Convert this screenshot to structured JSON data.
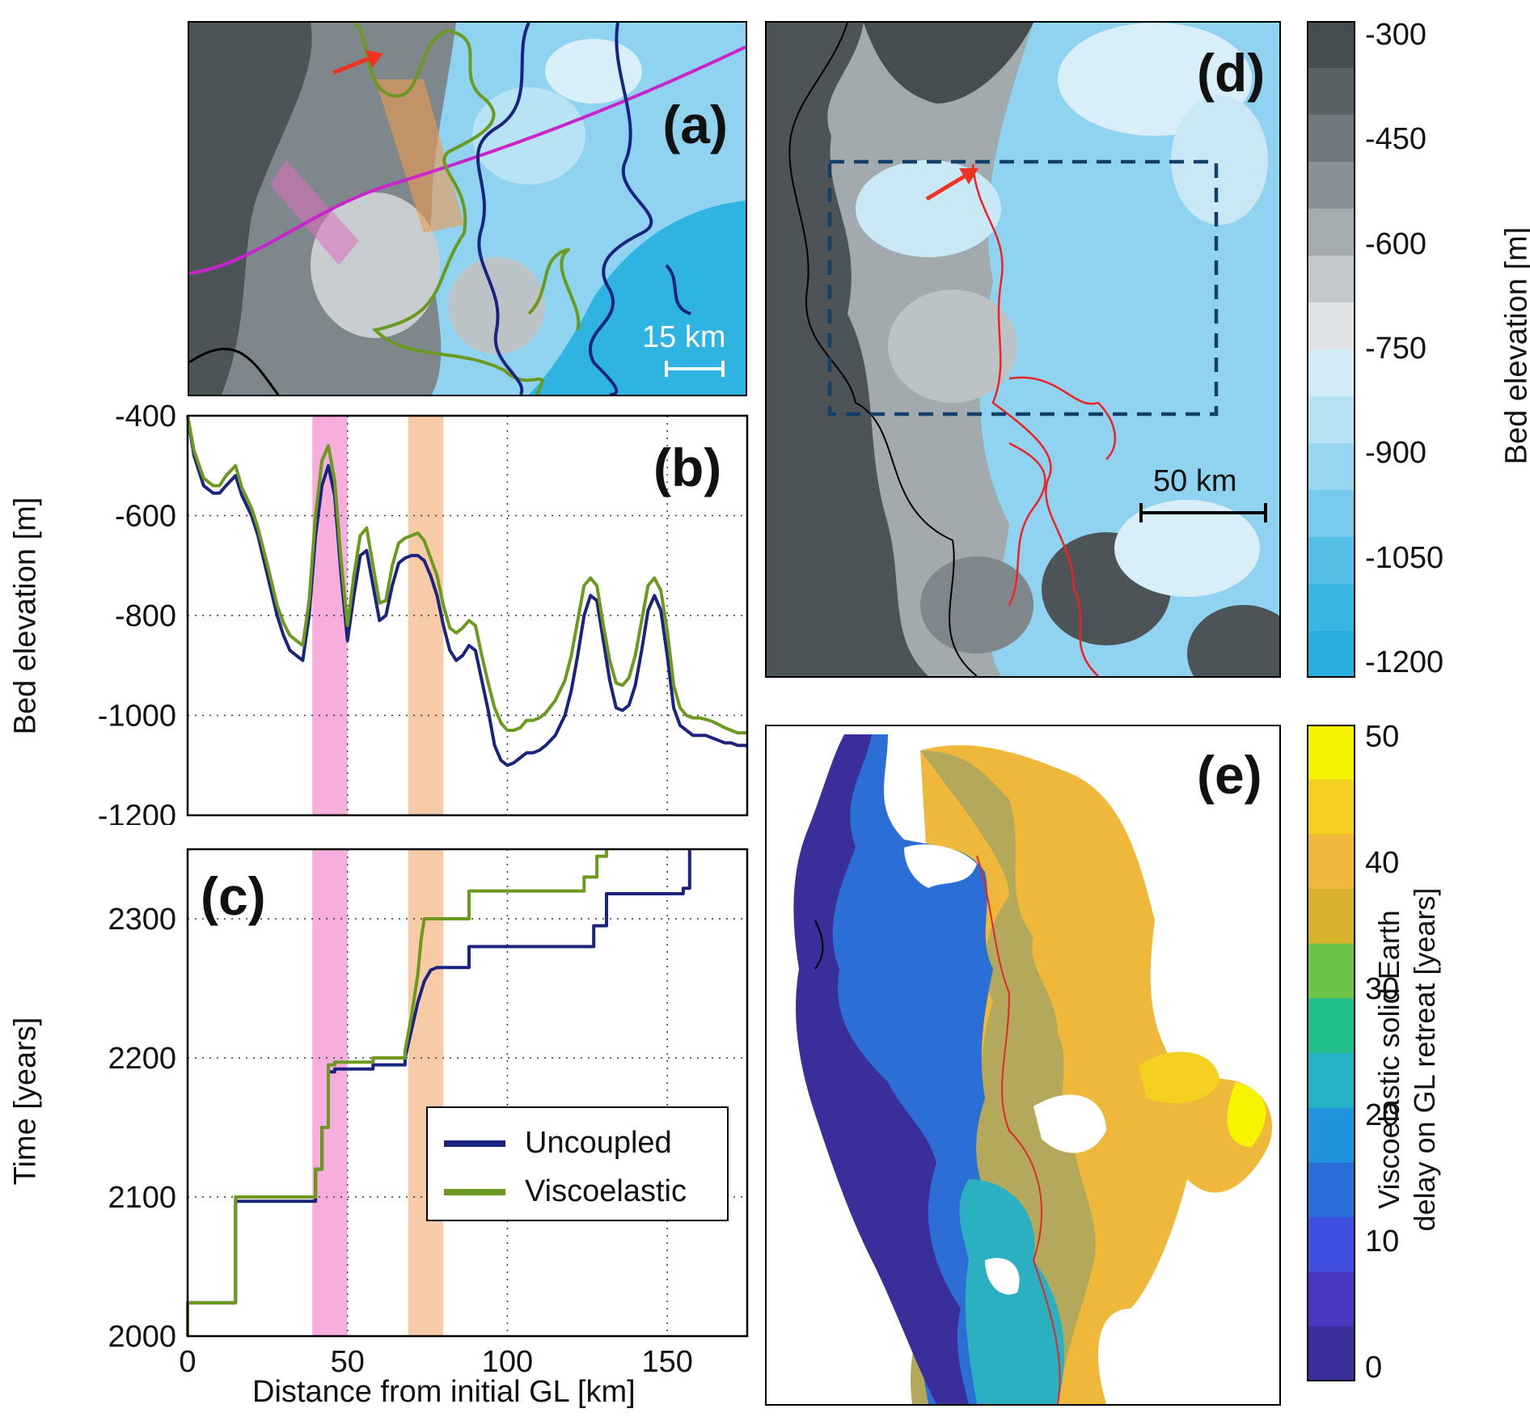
{
  "panels": {
    "a": {
      "label": "(a)",
      "scalebar": "15 km"
    },
    "b": {
      "label": "(b)"
    },
    "c": {
      "label": "(c)"
    },
    "d": {
      "label": "(d)",
      "scalebar": "50 km"
    },
    "e": {
      "label": "(e)"
    }
  },
  "colors": {
    "uncoupled": "#1a237e",
    "viscoelastic": "#6b9a1f",
    "pink_band": "#f06bbf",
    "orange_band": "#f0a060",
    "flowline": "#cc22cc",
    "arrow": "#ee3322",
    "gl_red": "#ee2222"
  },
  "chart_data": [
    {
      "type": "line",
      "panel": "b",
      "ylabel": "Bed elevation [m]",
      "xlim": [
        0,
        175
      ],
      "ylim": [
        -1200,
        -400
      ],
      "yticks": [
        "-400",
        "-600",
        "-800",
        "-1000",
        "-1200"
      ],
      "grid": true,
      "bands": [
        {
          "color": "pink",
          "x": [
            39,
            50
          ]
        },
        {
          "color": "orange",
          "x": [
            69,
            80
          ]
        }
      ],
      "series": [
        {
          "name": "Uncoupled",
          "x": [
            0,
            2,
            5,
            8,
            10,
            12,
            15,
            17,
            20,
            22,
            25,
            28,
            30,
            32,
            34,
            36,
            38,
            40,
            42,
            44,
            46,
            48,
            50,
            52,
            54,
            56,
            58,
            60,
            62,
            64,
            66,
            68,
            70,
            72,
            74,
            76,
            78,
            80,
            82,
            84,
            86,
            88,
            90,
            92,
            94,
            96,
            98,
            100,
            102,
            104,
            106,
            108,
            110,
            112,
            115,
            118,
            120,
            122,
            124,
            126,
            128,
            130,
            132,
            134,
            136,
            138,
            140,
            142,
            144,
            146,
            148,
            150,
            152,
            154,
            156,
            158,
            160,
            162,
            164,
            166,
            168,
            170,
            172,
            175
          ],
          "y": [
            -400,
            -480,
            -540,
            -555,
            -555,
            -540,
            -520,
            -560,
            -600,
            -640,
            -720,
            -800,
            -840,
            -870,
            -880,
            -890,
            -800,
            -640,
            -540,
            -500,
            -560,
            -720,
            -850,
            -760,
            -680,
            -670,
            -740,
            -810,
            -800,
            -740,
            -695,
            -685,
            -680,
            -680,
            -690,
            -720,
            -760,
            -820,
            -870,
            -890,
            -880,
            -860,
            -870,
            -930,
            -990,
            -1060,
            -1090,
            -1100,
            -1095,
            -1085,
            -1075,
            -1075,
            -1070,
            -1060,
            -1040,
            -1000,
            -950,
            -880,
            -800,
            -760,
            -770,
            -850,
            -930,
            -985,
            -990,
            -980,
            -940,
            -870,
            -790,
            -760,
            -790,
            -880,
            -985,
            -1020,
            -1030,
            -1040,
            -1040,
            -1040,
            -1045,
            -1050,
            -1055,
            -1055,
            -1060,
            -1060
          ]
        },
        {
          "name": "Viscoelastic",
          "x": [
            0,
            2,
            5,
            8,
            10,
            12,
            15,
            17,
            20,
            22,
            25,
            28,
            30,
            32,
            34,
            36,
            38,
            40,
            42,
            44,
            46,
            48,
            50,
            52,
            54,
            56,
            58,
            60,
            62,
            64,
            66,
            68,
            70,
            72,
            74,
            76,
            78,
            80,
            82,
            84,
            86,
            88,
            90,
            92,
            94,
            96,
            98,
            100,
            102,
            104,
            106,
            108,
            110,
            112,
            115,
            118,
            120,
            122,
            124,
            126,
            128,
            130,
            132,
            134,
            136,
            138,
            140,
            142,
            144,
            146,
            148,
            150,
            152,
            154,
            156,
            158,
            160,
            162,
            164,
            166,
            168,
            170,
            172,
            175
          ],
          "y": [
            -400,
            -470,
            -525,
            -540,
            -540,
            -520,
            -500,
            -545,
            -585,
            -625,
            -700,
            -780,
            -815,
            -840,
            -850,
            -860,
            -770,
            -600,
            -490,
            -460,
            -530,
            -690,
            -820,
            -720,
            -640,
            -625,
            -700,
            -775,
            -770,
            -700,
            -655,
            -645,
            -640,
            -635,
            -650,
            -685,
            -720,
            -780,
            -825,
            -835,
            -825,
            -810,
            -820,
            -880,
            -935,
            -985,
            -1015,
            -1030,
            -1030,
            -1025,
            -1010,
            -1010,
            -1005,
            -995,
            -970,
            -930,
            -880,
            -810,
            -740,
            -725,
            -740,
            -820,
            -890,
            -935,
            -940,
            -925,
            -880,
            -810,
            -740,
            -725,
            -750,
            -830,
            -940,
            -985,
            -1000,
            -1005,
            -1005,
            -1008,
            -1012,
            -1018,
            -1025,
            -1030,
            -1035,
            -1035
          ]
        }
      ]
    },
    {
      "type": "line",
      "panel": "c",
      "ylabel": "Time [years]",
      "xlabel": "Distance from initial GL [km]",
      "xlim": [
        0,
        175
      ],
      "ylim": [
        2000,
        2350
      ],
      "xticks": [
        "0",
        "50",
        "100",
        "150"
      ],
      "yticks": [
        "2000",
        "2100",
        "2200",
        "2300"
      ],
      "grid": true,
      "legend": "bottom-right",
      "bands": [
        {
          "color": "pink",
          "x": [
            39,
            50
          ]
        },
        {
          "color": "orange",
          "x": [
            69,
            80
          ]
        }
      ],
      "series": [
        {
          "name": "Uncoupled",
          "x": [
            0,
            0,
            15,
            15,
            40,
            40,
            42,
            42,
            44,
            44,
            46,
            46,
            58,
            58,
            68,
            68,
            70,
            72,
            74,
            76,
            78,
            88,
            88,
            127,
            127,
            131,
            131,
            155,
            155,
            157,
            157
          ],
          "y": [
            2000,
            2024,
            2024,
            2097,
            2097,
            2120,
            2120,
            2150,
            2150,
            2190,
            2190,
            2192,
            2192,
            2195,
            2195,
            2200,
            2220,
            2240,
            2255,
            2263,
            2265,
            2265,
            2280,
            2280,
            2295,
            2295,
            2318,
            2318,
            2322,
            2322,
            2350
          ]
        },
        {
          "name": "Viscoelastic",
          "x": [
            0,
            0,
            15,
            15,
            40,
            40,
            42,
            42,
            44,
            44,
            46,
            46,
            58,
            58,
            68,
            68,
            70,
            72,
            73,
            74,
            76,
            88,
            88,
            124,
            124,
            128,
            128,
            131,
            131
          ],
          "y": [
            2000,
            2024,
            2024,
            2100,
            2100,
            2120,
            2120,
            2150,
            2150,
            2195,
            2195,
            2197,
            2197,
            2200,
            2200,
            2205,
            2230,
            2260,
            2285,
            2300,
            2300,
            2300,
            2320,
            2320,
            2330,
            2330,
            2345,
            2345,
            2350
          ]
        }
      ]
    },
    {
      "type": "heatmap",
      "panel": "a,d",
      "colorbar_label": "Bed elevation [m]",
      "colorbar_ticks": [
        "-300",
        "-450",
        "-600",
        "-750",
        "-900",
        "-1050",
        "-1200"
      ]
    },
    {
      "type": "heatmap",
      "panel": "e",
      "colorbar_label_lines": [
        "Viscoelastic solid Earth",
        "delay on GL retreat [years]"
      ],
      "colorbar_ticks": [
        "50",
        "40",
        "30",
        "20",
        "10",
        "0"
      ]
    }
  ]
}
